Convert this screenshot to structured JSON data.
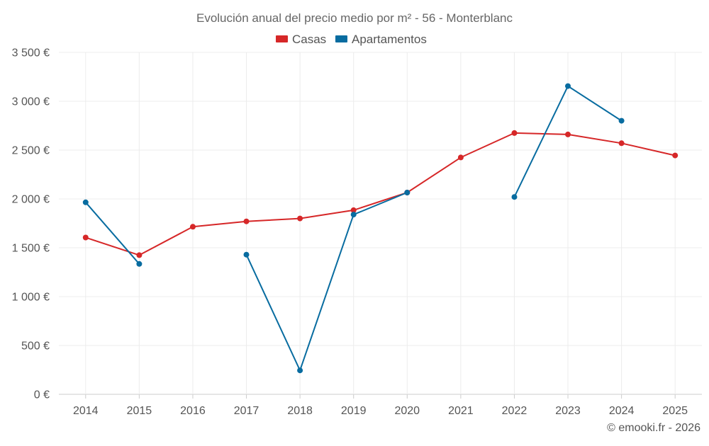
{
  "chart_data": {
    "type": "line",
    "title": "Evolución anual del precio medio por m² - 56 - Monterblanc",
    "categories": [
      "2014",
      "2015",
      "2016",
      "2017",
      "2018",
      "2019",
      "2020",
      "2021",
      "2022",
      "2023",
      "2024",
      "2025"
    ],
    "series": [
      {
        "name": "Casas",
        "color": "#d62728",
        "values": [
          1605,
          1425,
          1715,
          1770,
          1800,
          1885,
          2065,
          2425,
          2675,
          2660,
          2570,
          2445
        ]
      },
      {
        "name": "Apartamentos",
        "color": "#086ca0",
        "values": [
          1965,
          1335,
          null,
          1430,
          245,
          1840,
          2065,
          null,
          2020,
          3155,
          2800,
          null
        ]
      }
    ],
    "ylim": [
      0,
      3500
    ],
    "yticks": [
      0,
      500,
      1000,
      1500,
      2000,
      2500,
      3000,
      3500
    ],
    "ytick_labels": [
      "0 €",
      "500 €",
      "1 000 €",
      "1 500 €",
      "2 000 €",
      "2 500 €",
      "3 000 €",
      "3 500 €"
    ],
    "xlabel": "",
    "ylabel": "",
    "grid": true,
    "legend_position": "top-center"
  },
  "credit": "© emooki.fr - 2026"
}
